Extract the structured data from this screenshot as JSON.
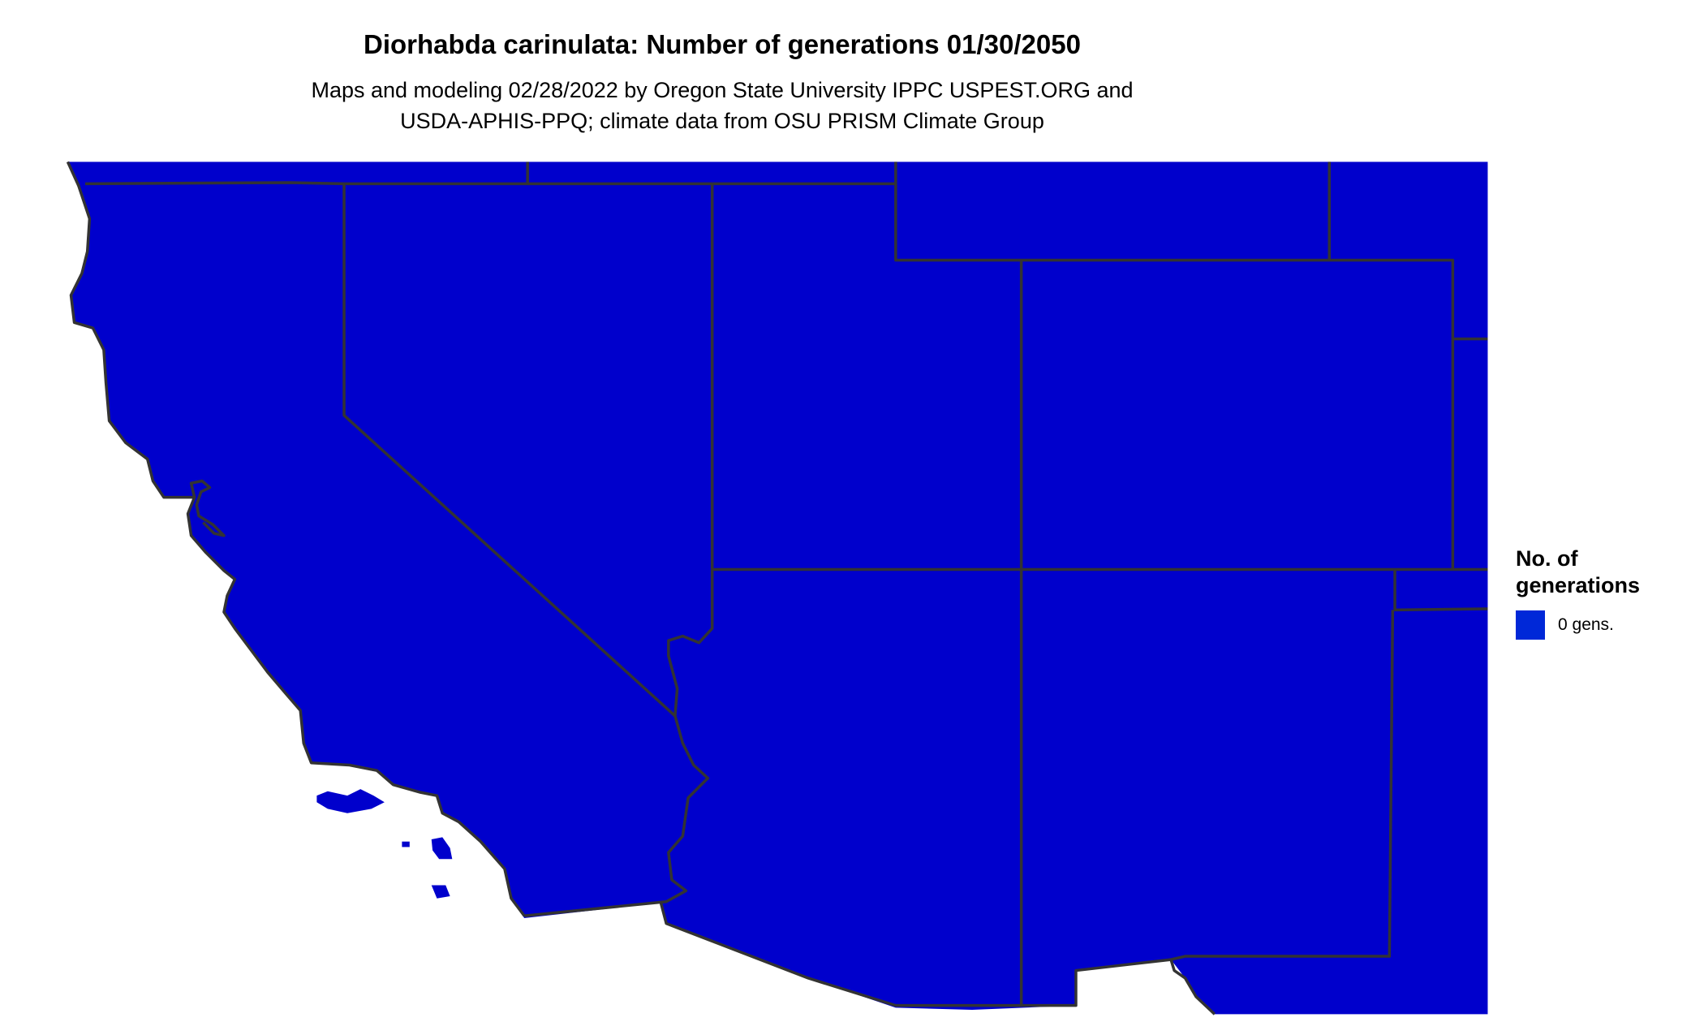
{
  "title": "Diorhabda carinulata: Number of generations 01/30/2050",
  "subtitle_lines": [
    "Maps and modeling 02/28/2022 by Oregon State University IPPC USPEST.ORG and",
    "USDA-APHIS-PPQ; climate data from OSU PRISM Climate Group"
  ],
  "legend": {
    "title_lines": [
      "No. of",
      "generations"
    ],
    "items": [
      {
        "label": "0 gens.",
        "color": "#0028D8"
      }
    ]
  },
  "colors": {
    "map_fill": "#0000CC",
    "border": "#333333",
    "background": "#FFFFFF"
  }
}
